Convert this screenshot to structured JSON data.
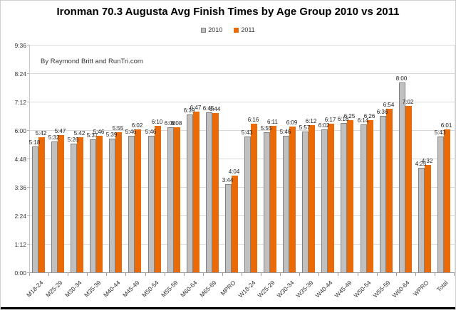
{
  "legend": {
    "items": [
      {
        "label": "2010",
        "color": "#C0C0C0",
        "border": "#7f7f7f"
      },
      {
        "label": "2011",
        "color": "#EB6A08",
        "border": "#EB6A08"
      }
    ]
  },
  "chart_data": {
    "type": "bar",
    "title": "Ironman 70.3 Augusta Avg Finish Times by Age Group 2010 vs 2011",
    "annotation": "By Raymond Britt and RunTri.com",
    "legend_position": "top",
    "grid": true,
    "categories": [
      "M18-24",
      "M25-29",
      "M30-34",
      "M35-39",
      "M40-44",
      "M45-49",
      "M50-54",
      "M55-59",
      "M60-64",
      "M65-69",
      "MPRO",
      "W18-24",
      "W25-29",
      "W30-34",
      "W35-39",
      "W40-44",
      "W45-49",
      "W50-54",
      "W55-59",
      "W60-64",
      "WPRO",
      "Total"
    ],
    "series": [
      {
        "name": "2010",
        "color": "#C0C0C0",
        "values": [
          "5:18",
          "5:32",
          "5:26",
          "5:37",
          "5:39",
          "5:46",
          "5:46",
          "6:08",
          "6:39",
          "6:45",
          "3:44",
          "5:43",
          "5:55",
          "5:46",
          "5:57",
          "6:02",
          "6:18",
          "6:14",
          "6:36",
          "8:00",
          "4:25",
          "5:43"
        ]
      },
      {
        "name": "2011",
        "color": "#EB6A08",
        "values": [
          "5:42",
          "5:47",
          "5:42",
          "5:46",
          "5:55",
          "6:02",
          "6:10",
          "6:08",
          "6:47",
          "6:44",
          "4:04",
          "6:16",
          "6:11",
          "6:09",
          "6:12",
          "6:17",
          "6:25",
          "6:26",
          "6:54",
          "7:02",
          "4:32",
          "6:01"
        ]
      }
    ],
    "y_ticks": [
      "0:00",
      "1:12",
      "2:24",
      "3:36",
      "4:48",
      "6:00",
      "7:12",
      "8:24",
      "9:36"
    ],
    "ylim_minutes": [
      0,
      576
    ],
    "ylabel": "",
    "xlabel": ""
  }
}
